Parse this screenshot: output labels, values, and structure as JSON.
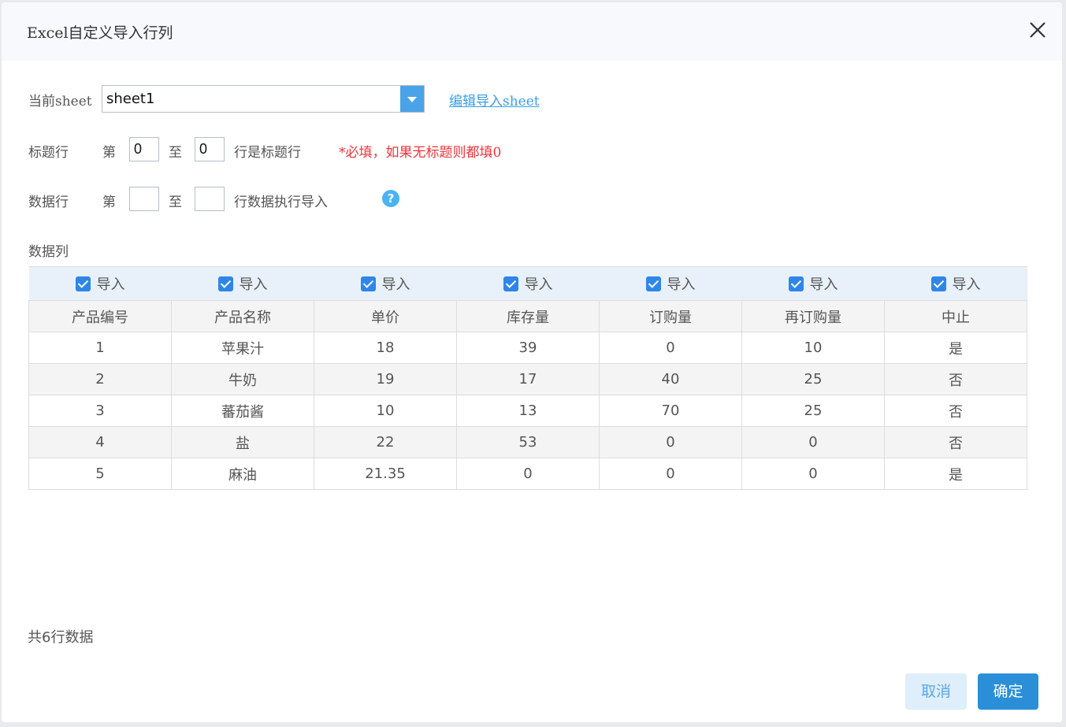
{
  "dialog": {
    "title": "Excel自定义导入行列",
    "close_icon": "close-icon"
  },
  "sheet": {
    "label": "当前sheet",
    "value": "sheet1",
    "edit_link": "编辑导入sheet"
  },
  "title_row": {
    "label": "标题行",
    "from_label": "第",
    "from": "0",
    "to_label": "至",
    "to": "0",
    "suffix": "行是标题行",
    "note": "*必填，如果无标题则都填0"
  },
  "data_row": {
    "label": "数据行",
    "from_label": "第",
    "from": "",
    "to_label": "至",
    "to": "",
    "suffix": "行数据执行导入",
    "help": "?"
  },
  "data_cols": {
    "label": "数据列",
    "import_label": "导入",
    "checked": [
      true,
      true,
      true,
      true,
      true,
      true,
      true
    ]
  },
  "table": {
    "headers": [
      "产品编号",
      "产品名称",
      "单价",
      "库存量",
      "订购量",
      "再订购量",
      "中止"
    ],
    "rows": [
      [
        "1",
        "苹果汁",
        "18",
        "39",
        "0",
        "10",
        "是"
      ],
      [
        "2",
        "牛奶",
        "19",
        "17",
        "40",
        "25",
        "否"
      ],
      [
        "3",
        "蕃茄酱",
        "10",
        "13",
        "70",
        "25",
        "否"
      ],
      [
        "4",
        "盐",
        "22",
        "53",
        "0",
        "0",
        "否"
      ],
      [
        "5",
        "麻油",
        "21.35",
        "0",
        "0",
        "0",
        "是"
      ]
    ]
  },
  "footer": {
    "total": "共6行数据",
    "cancel": "取消",
    "ok": "确定"
  },
  "colors": {
    "accent": "#2b8fd8",
    "required": "#f2343a",
    "link": "#3a9ee8"
  }
}
